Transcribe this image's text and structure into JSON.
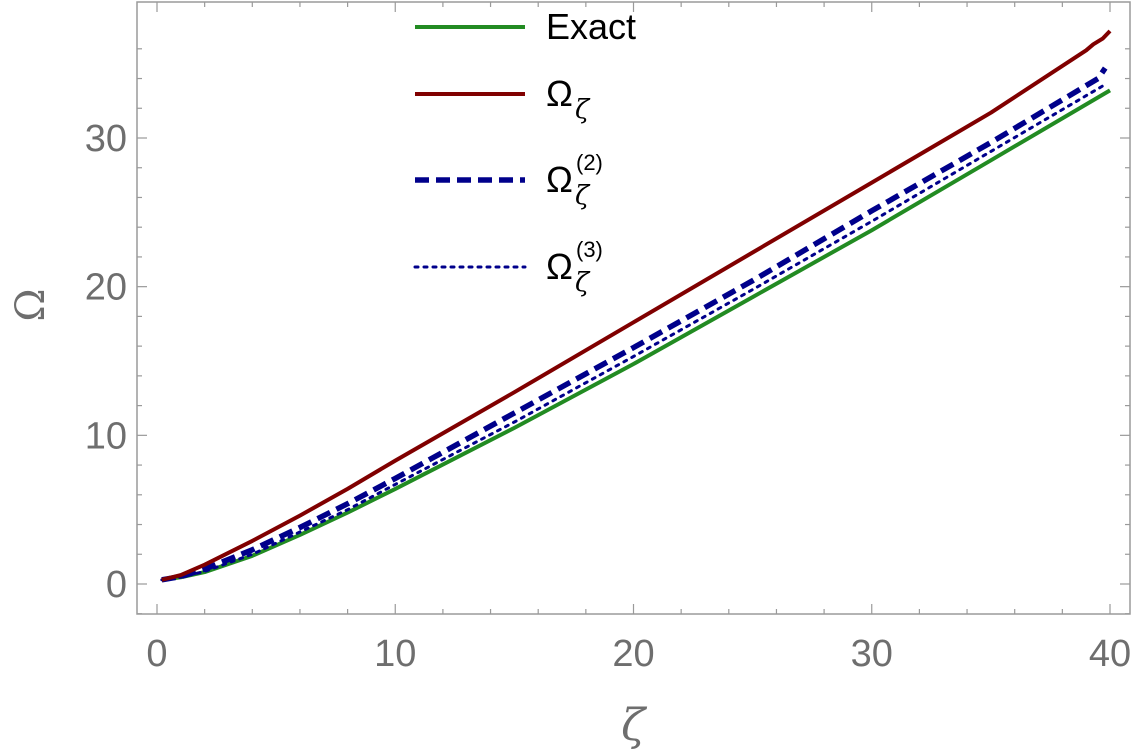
{
  "chart_data": {
    "type": "line",
    "xlabel": "ζ",
    "ylabel": "Ω",
    "xlim": [
      0,
      40
    ],
    "ylim": [
      0,
      37
    ],
    "x_ticks": [
      "0",
      "10",
      "20",
      "30",
      "40"
    ],
    "y_ticks": [
      "0",
      "10",
      "20",
      "30"
    ],
    "grid": false,
    "legend_position": "top-center",
    "series": [
      {
        "name": "Exact",
        "legend_base": "Exact",
        "legend_sub": "",
        "legend_sup": "",
        "color": "#228b22",
        "dash": "solid",
        "x": [
          0.2,
          1,
          2,
          4,
          6,
          8,
          10,
          15,
          20,
          25,
          30,
          35,
          40
        ],
        "y": [
          0.28,
          0.45,
          0.8,
          1.9,
          3.3,
          4.8,
          6.4,
          10.5,
          14.8,
          19.3,
          23.8,
          28.5,
          33.2
        ]
      },
      {
        "name": "Ω_ζ",
        "legend_base": "Ω",
        "legend_sub": "ζ",
        "legend_sup": "",
        "color": "#800000",
        "dash": "solid",
        "x": [
          0.2,
          1,
          2,
          4,
          6,
          8,
          10,
          15,
          20,
          25,
          30,
          35,
          39,
          39.3,
          39.7,
          40
        ],
        "y": [
          0.28,
          0.6,
          1.3,
          2.9,
          4.6,
          6.4,
          8.3,
          12.9,
          17.6,
          22.3,
          27.0,
          31.7,
          35.9,
          36.3,
          36.7,
          37.2
        ]
      },
      {
        "name": "Ω_ζ^(2)",
        "legend_base": "Ω",
        "legend_sub": "ζ",
        "legend_sup": "(2)",
        "color": "#00008b",
        "dash": "dashed",
        "x": [
          0.2,
          1,
          2,
          4,
          6,
          8,
          10,
          15,
          20,
          25,
          30,
          35,
          39.5,
          39.8
        ],
        "y": [
          0.28,
          0.5,
          1.0,
          2.3,
          3.8,
          5.4,
          7.1,
          11.5,
          15.9,
          20.4,
          25.1,
          29.7,
          34.0,
          34.7
        ]
      },
      {
        "name": "Ω_ζ^(3)",
        "legend_base": "Ω",
        "legend_sub": "ζ",
        "legend_sup": "(3)",
        "color": "#00008b",
        "dash": "dotted",
        "x": [
          0.2,
          1,
          2,
          4,
          6,
          8,
          10,
          15,
          20,
          25,
          30,
          35,
          39.8
        ],
        "y": [
          0.28,
          0.45,
          0.85,
          2.0,
          3.5,
          5.0,
          6.7,
          10.9,
          15.3,
          19.8,
          24.4,
          29.1,
          33.6
        ]
      }
    ]
  }
}
